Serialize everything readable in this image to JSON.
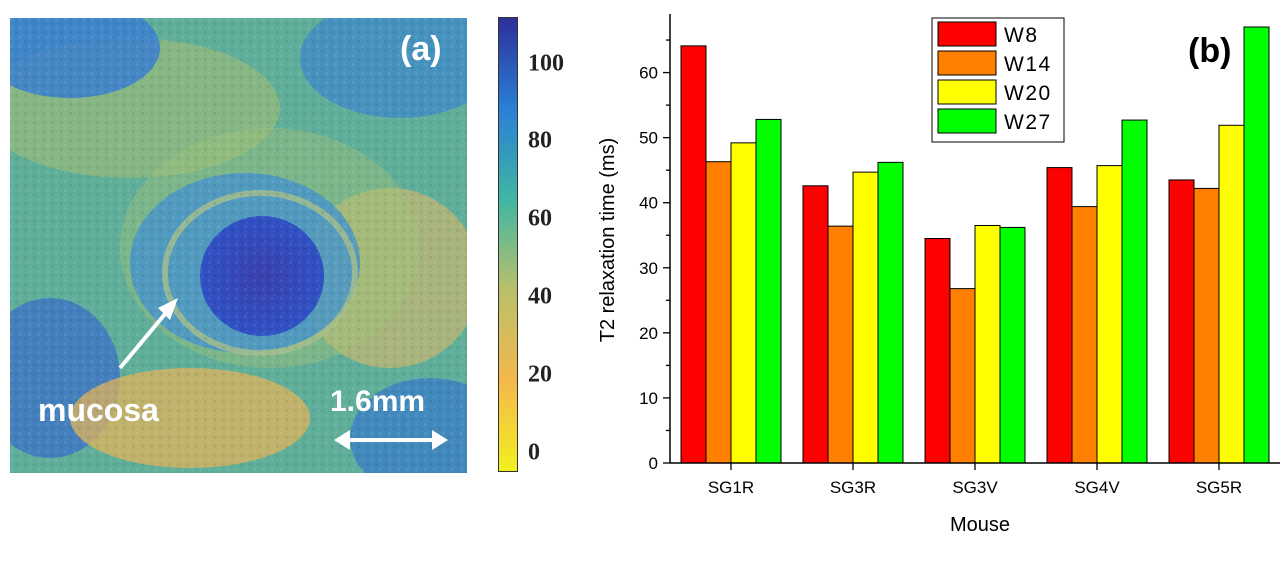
{
  "panel_a": {
    "label": "(a)",
    "annotation": "mucosa",
    "scale_bar": "1.6mm",
    "colorbar": {
      "ticks": [
        "100",
        "80",
        "60",
        "40",
        "20",
        "0"
      ],
      "tick_values": [
        100,
        80,
        60,
        40,
        20,
        0
      ],
      "range": [
        -5,
        112
      ],
      "colors": [
        "#f2ef1f",
        "#f4b84c",
        "#b9c06a",
        "#3fb6a3",
        "#2a7fd6",
        "#2d2f9a"
      ]
    }
  },
  "chart_data": {
    "type": "bar",
    "panel_label": "(b)",
    "categories": [
      "SG1R",
      "SG3R",
      "SG3V",
      "SG4V",
      "SG5R"
    ],
    "series": [
      {
        "name": "W8",
        "color": "#ff0000",
        "values": [
          64.1,
          42.6,
          34.5,
          45.4,
          43.5
        ]
      },
      {
        "name": "W14",
        "color": "#ff8000",
        "values": [
          46.3,
          36.4,
          26.8,
          39.4,
          42.2
        ]
      },
      {
        "name": "W20",
        "color": "#ffff00",
        "values": [
          49.2,
          44.7,
          36.5,
          45.7,
          51.9
        ]
      },
      {
        "name": "W27",
        "color": "#00ff00",
        "values": [
          52.8,
          46.2,
          36.2,
          52.7,
          67.0
        ]
      }
    ],
    "xlabel": "Mouse",
    "ylabel": "T2 relaxation  time (ms)",
    "ylim": [
      0,
      69
    ],
    "yticks": [
      0,
      10,
      20,
      30,
      40,
      50,
      60
    ],
    "legend_position": "top-center",
    "grid": false
  }
}
